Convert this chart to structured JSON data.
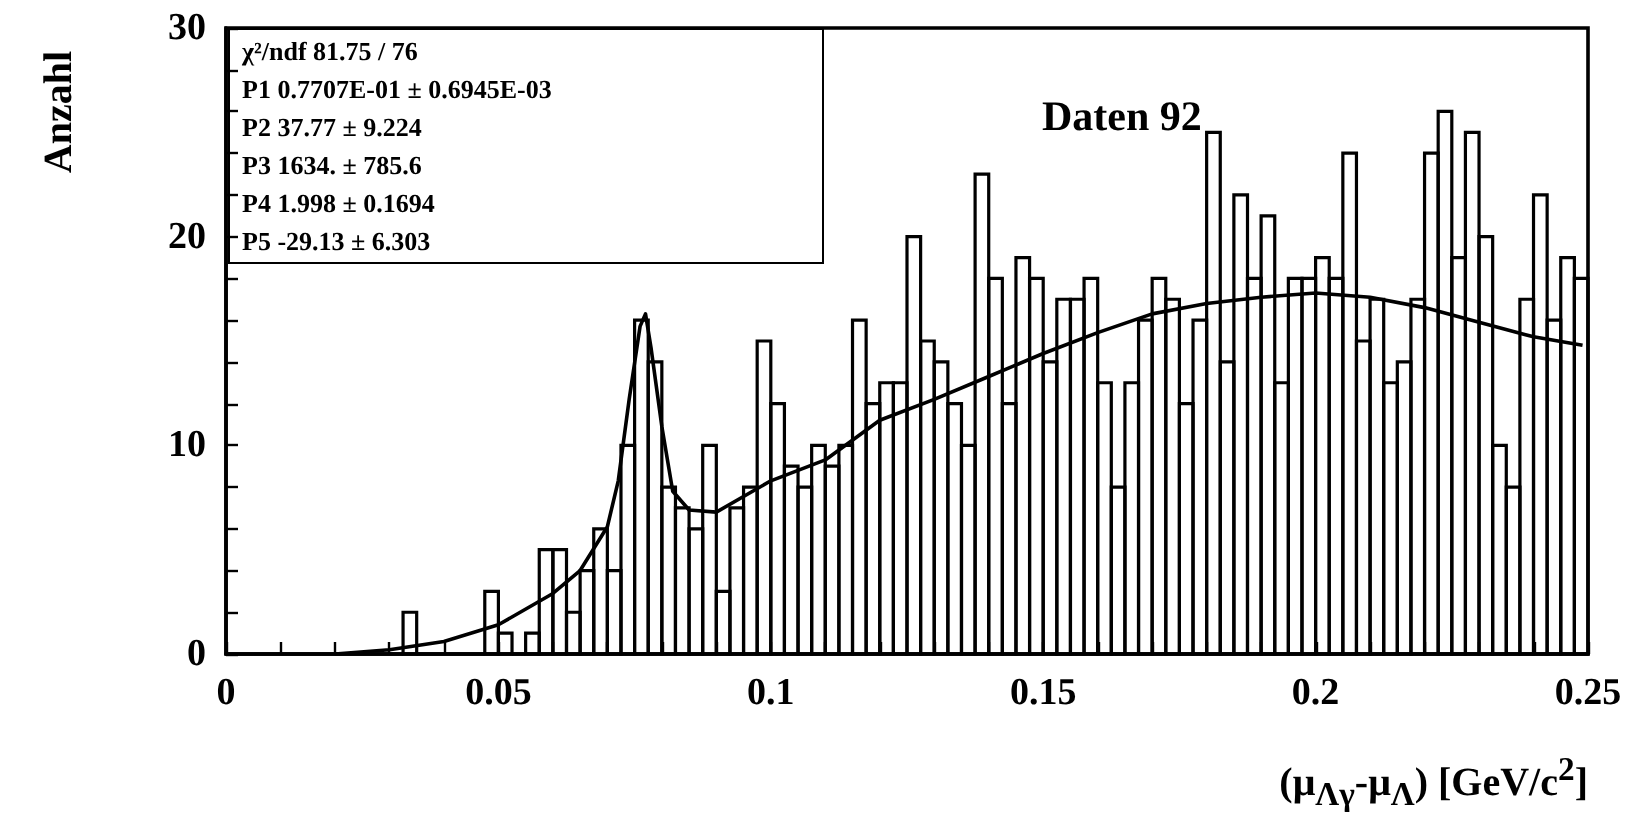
{
  "chart_data": {
    "type": "histogram",
    "xlabel": "(μ$_{Λγ}$-μ$_{Λ}$) [GeV/c$^{2}$]",
    "ylabel": "Anzahl",
    "annotations": [
      "χ²/ndf 81.75 / 76",
      "P1 0.7707E-01 ± 0.6945E-03",
      "P2 37.77 ± 9.224",
      "P3 1634. ± 785.6",
      "P4 1.998 ± 0.1694",
      "P5 -29.13 ± 6.303",
      "Daten 92"
    ],
    "bins": [
      0,
      0.0025,
      0.005,
      0.0075,
      0.01,
      0.0125,
      0.015,
      0.0175,
      0.02,
      0.0225,
      0.025,
      0.0275,
      0.03,
      0.0325,
      0.035,
      0.0375,
      0.04,
      0.0425,
      0.045,
      0.0475,
      0.05,
      0.0525,
      0.055,
      0.0575,
      0.06,
      0.0625,
      0.065,
      0.0675,
      0.07,
      0.0725,
      0.075,
      0.0775,
      0.08,
      0.0825,
      0.085,
      0.0875,
      0.09,
      0.0925,
      0.095,
      0.0975,
      0.1,
      0.1025,
      0.105,
      0.1075,
      0.11,
      0.1125,
      0.115,
      0.1175,
      0.12,
      0.1225,
      0.125,
      0.1275,
      0.13,
      0.1325,
      0.135,
      0.1375,
      0.14,
      0.1425,
      0.145,
      0.1475,
      0.15,
      0.1525,
      0.155,
      0.1575,
      0.16,
      0.1625,
      0.165,
      0.1675,
      0.17,
      0.1725,
      0.175,
      0.1775,
      0.18,
      0.1825,
      0.185,
      0.1875,
      0.19,
      0.1925,
      0.195,
      0.1975,
      0.2,
      0.2025,
      0.205,
      0.2075,
      0.21,
      0.2125,
      0.215,
      0.2175,
      0.22,
      0.2225,
      0.225,
      0.2275,
      0.23,
      0.2325,
      0.235,
      0.2375,
      0.24,
      0.2425,
      0.245,
      0.2475,
      0.25
    ],
    "values": [
      0,
      0,
      0,
      0,
      0,
      0,
      0,
      0,
      0,
      0,
      0,
      0,
      0,
      2,
      0,
      0,
      0,
      0,
      0,
      3,
      1,
      0,
      1,
      5,
      5,
      2,
      4,
      6,
      4,
      10,
      16,
      14,
      8,
      7,
      6,
      10,
      3,
      7,
      8,
      15,
      12,
      9,
      8,
      10,
      9,
      10,
      16,
      12,
      13,
      13,
      20,
      15,
      14,
      12,
      10,
      23,
      18,
      12,
      19,
      18,
      14,
      17,
      17,
      18,
      13,
      8,
      13,
      16,
      18,
      17,
      12,
      16,
      25,
      14,
      22,
      18,
      21,
      13,
      18,
      18,
      19,
      18,
      24,
      15,
      17,
      13,
      14,
      17,
      24,
      26,
      19,
      25,
      20,
      10,
      8,
      17,
      22,
      16,
      19,
      18
    ],
    "color": "#000000",
    "series": [
      {
        "type": "line",
        "color": "#000000",
        "x": [
          0.02,
          0.03,
          0.04,
          0.05,
          0.06,
          0.065,
          0.07,
          0.072,
          0.074,
          0.076,
          0.077,
          0.078,
          0.08,
          0.082,
          0.085,
          0.09,
          0.1,
          0.11,
          0.12,
          0.13,
          0.14,
          0.15,
          0.16,
          0.17,
          0.18,
          0.19,
          0.2,
          0.21,
          0.22,
          0.23,
          0.24,
          0.249
        ],
        "values": [
          0,
          0.2,
          0.6,
          1.4,
          2.9,
          4,
          6.1,
          8.3,
          12.2,
          15.7,
          16.3,
          14.7,
          10.9,
          7.8,
          6.9,
          6.8,
          8.3,
          9.3,
          11.2,
          12.2,
          13.3,
          14.4,
          15.4,
          16.3,
          16.8,
          17.1,
          17.3,
          17.1,
          16.6,
          15.9,
          15.2,
          14.8
        ]
      }
    ],
    "marker": "none",
    "line_style": "solid",
    "xlim": [
      0,
      0.25
    ],
    "xticks": [
      0,
      {
        "value": 0.01,
        "label": null
      },
      {
        "value": 0.02,
        "label": null
      },
      {
        "value": 0.03,
        "label": null
      },
      {
        "value": 0.04,
        "label": null
      },
      0.05,
      {
        "value": 0.06,
        "label": null
      },
      {
        "value": 0.07,
        "label": null
      },
      {
        "value": 0.08,
        "label": null
      },
      {
        "value": 0.09,
        "label": null
      },
      0.1,
      {
        "value": 0.11,
        "label": null
      },
      {
        "value": 0.12,
        "label": null
      },
      {
        "value": 0.13,
        "label": null
      },
      {
        "value": 0.14,
        "label": null
      },
      0.15,
      {
        "value": 0.16,
        "label": null
      },
      {
        "value": 0.17,
        "label": null
      },
      {
        "value": 0.18,
        "label": null
      },
      {
        "value": 0.19,
        "label": null
      },
      0.2,
      {
        "value": 0.21,
        "label": null
      },
      {
        "value": 0.22,
        "label": null
      },
      {
        "value": 0.23,
        "label": null
      },
      {
        "value": 0.24,
        "label": null
      },
      0.25
    ],
    "ylim": [
      0,
      30
    ],
    "yticks": [
      0,
      {
        "value": 2,
        "label": null
      },
      {
        "value": 4,
        "label": null
      },
      {
        "value": 6,
        "label": null
      },
      {
        "value": 8,
        "label": null
      },
      10,
      {
        "value": 12,
        "label": null
      },
      {
        "value": 14,
        "label": null
      },
      {
        "value": 16,
        "label": null
      },
      {
        "value": 18,
        "label": null
      },
      20,
      {
        "value": 22,
        "label": null
      },
      {
        "value": 24,
        "label": null
      },
      {
        "value": 26,
        "label": null
      },
      {
        "value": 28,
        "label": null
      },
      30
    ],
    "grid": false
  }
}
